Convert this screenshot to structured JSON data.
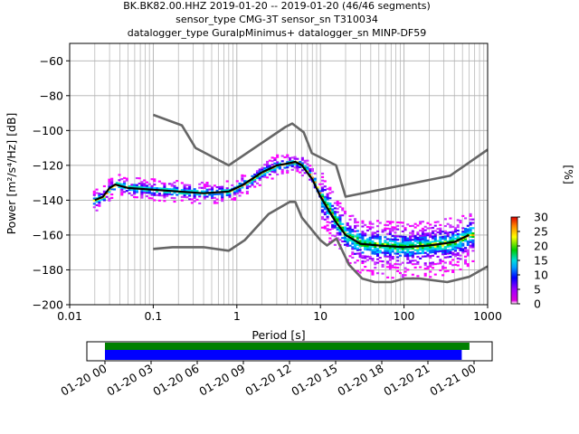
{
  "header": {
    "title_line1": "BK.BK82.00.HHZ   2019-01-20 -- 2019-01-20  (46/46 segments)",
    "title_line2": "sensor_type CMG-3T sensor_sn T310034",
    "title_line3": "datalogger_type GuralpMinimus+ datalogger_sn MINP-DF59"
  },
  "chart_data": {
    "type": "heatmap",
    "title": "BK.BK82.00.HHZ   2019-01-20 -- 2019-01-20  (46/46 segments)",
    "xlabel": "Period [s]",
    "ylabel": "Power [m²/s⁴/Hz] [dB]",
    "x_scale": "log",
    "xlim": [
      0.01,
      1000
    ],
    "ylim": [
      -200,
      -50
    ],
    "x_ticks": [
      0.01,
      0.1,
      1,
      10,
      100,
      1000
    ],
    "x_tick_labels": [
      "0.01",
      "0.1",
      "1",
      "10",
      "100",
      "1000"
    ],
    "y_ticks": [
      -200,
      -180,
      -160,
      -140,
      -120,
      -100,
      -80,
      -60
    ],
    "y_tick_labels": [
      "−200",
      "−180",
      "−160",
      "−140",
      "−120",
      "−100",
      "−80",
      "−60"
    ],
    "grid": true,
    "colorbar": {
      "label": "[%]",
      "range": [
        0,
        30
      ],
      "ticks": [
        0,
        5,
        10,
        15,
        20,
        25,
        30
      ],
      "colormap": "pqlx"
    },
    "series": [
      {
        "name": "",
        "role": "mean PSD",
        "color": "#000000",
        "x": [
          0.02,
          0.025,
          0.03,
          0.035,
          0.05,
          0.1,
          0.2,
          0.4,
          0.8,
          1.2,
          2,
          3,
          4,
          5,
          6,
          8,
          10,
          15,
          20,
          30,
          50,
          100,
          200,
          400,
          600
        ],
        "y": [
          -140,
          -138,
          -133,
          -131,
          -133,
          -134,
          -135,
          -136,
          -135,
          -131,
          -124,
          -120,
          -119,
          -118,
          -120,
          -128,
          -138,
          -152,
          -160,
          -165,
          -166,
          -167,
          -166,
          -164,
          -160
        ]
      },
      {
        "name": "",
        "role": "NHNM",
        "color": "#666666",
        "x": [
          0.1,
          0.22,
          0.32,
          0.8,
          3.8,
          4.6,
          6.3,
          7.9,
          15.4,
          20,
          354.8,
          1000
        ],
        "y": [
          -91,
          -97,
          -110,
          -120,
          -98,
          -96,
          -101,
          -113,
          -120,
          -138,
          -126,
          -111
        ]
      },
      {
        "name": "",
        "role": "NLNM",
        "color": "#666666",
        "x": [
          0.1,
          0.17,
          0.4,
          0.8,
          1.24,
          2.4,
          4.3,
          5,
          6,
          10,
          12,
          15.6,
          21.9,
          31.6,
          45,
          70,
          101,
          154,
          328,
          600,
          1000
        ],
        "y": [
          -168,
          -167,
          -167,
          -169,
          -163,
          -148,
          -141,
          -141,
          -150,
          -163,
          -166,
          -162,
          -177,
          -185,
          -187,
          -187,
          -185,
          -185,
          -187,
          -184,
          -178
        ]
      }
    ]
  },
  "timeline": {
    "tick_labels": [
      "01-20 00",
      "01-20 03",
      "01-20 06",
      "01-20 09",
      "01-20 12",
      "01-20 15",
      "01-20 18",
      "01-20 21",
      "01-21 00"
    ],
    "bars": [
      {
        "name": "data availability",
        "color": "#008000",
        "start_hour": 0,
        "end_hour": 23.7
      },
      {
        "name": "PSD coverage",
        "color": "#0000ff",
        "start_hour": 0,
        "end_hour": 23.2
      }
    ]
  }
}
